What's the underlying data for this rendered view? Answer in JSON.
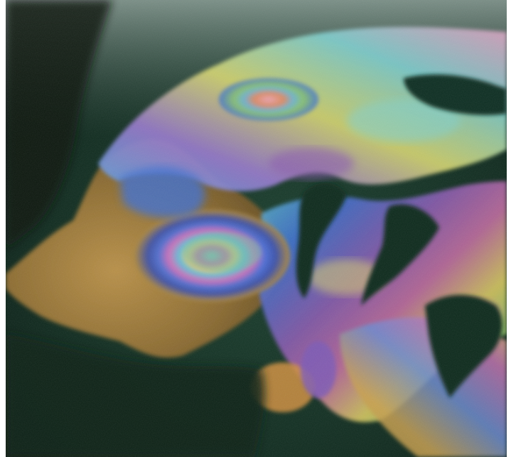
{
  "image": {
    "subject": "oil-slick",
    "palette": {
      "water_dark": "#0a1c14",
      "water_mid": "#173a2a",
      "water_haze": "#6f8a80",
      "oil_amber": "#b08a3a",
      "oil_brown": "#7a5a2a",
      "oil_blue": "#3f6fd0",
      "oil_violet": "#8a5ab0",
      "oil_magenta": "#c06aa0",
      "oil_cyan": "#5fc0c8",
      "oil_green": "#7fc070",
      "oil_yellow": "#d8c860",
      "oil_pink": "#e0a0c0"
    }
  }
}
